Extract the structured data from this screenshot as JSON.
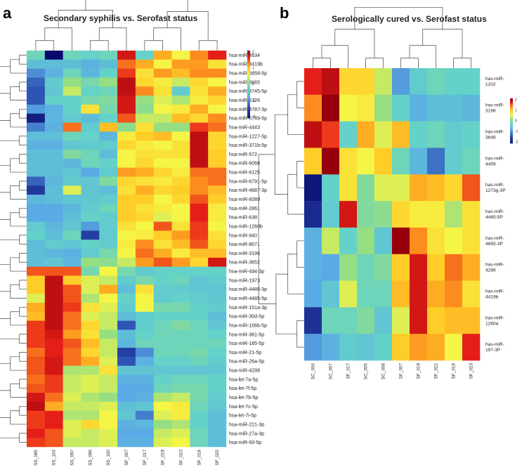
{
  "chart_data": [
    {
      "type": "heatmap",
      "panel": "a",
      "title": "Secondary syphilis vs. Serofast status",
      "columns": [
        "SS_085",
        "SS_103",
        "SS_097",
        "SS_096",
        "SS_100",
        "SF_007",
        "SF_017",
        "SF_019",
        "SF_023",
        "SF_018",
        "SF_022"
      ],
      "rows": [
        "hsa-miR-4634",
        "hsa-miR-4419b",
        "hsa-miR-6858-5p",
        "hsa-miR-3665",
        "hsa-miR-4745-5p",
        "hsa-miR-6126",
        "hsa-miR-4787-3p",
        "hsa-miR-6789-5p",
        "hsa-miR-4443",
        "hsa-miR-1227-5p",
        "hsa-miR-371b-5p",
        "hsa-miR-572",
        "hsa-miR-6068",
        "hsa-miR-6125",
        "hsa-miR-6791-5p",
        "hsa-miR-4687-3p",
        "hsa-miR-6089",
        "hsa-miR-2861",
        "hsa-miR-638",
        "hsa-miR-1260b",
        "hsa-miR-940",
        "hsa-miR-8071",
        "hsa-miR-3195",
        "hsa-miR-3652",
        "hsa-miR-494-3p",
        "hsa-miR-1973",
        "hsa-miR-4485-3p",
        "hsa-miR-4485-5p",
        "hsa-miR-151a-3p",
        "hsa-miR-30d-5p",
        "hsa-miR-106b-5p",
        "hsa-miR-361-5p",
        "hsa-miR-185-5p",
        "hsa-miR-21-5p",
        "hsa-miR-26a-5p",
        "hsa-miR-4299",
        "hsa-let-7a-5p",
        "hsa-let-7f-5p",
        "hsa-let-7b-5p",
        "hsa-let-7c-5p",
        "hsa-let-7i-5p",
        "hsa-miR-221-3p",
        "hsa-miR-27a-3p",
        "hsa-miR-93-5p"
      ],
      "values": [
        [
          -0.2,
          -2.8,
          -0.2,
          -0.3,
          -0.2,
          1.9,
          -0.3,
          1.2,
          0.6,
          1.4,
          1.8
        ],
        [
          -0.6,
          -0.6,
          -0.6,
          -0.8,
          -0.6,
          1.5,
          1.2,
          0.6,
          1.3,
          1.3,
          0.8
        ],
        [
          -1.1,
          -0.8,
          -0.2,
          -0.7,
          -0.3,
          1.7,
          0.8,
          1.3,
          1.1,
          1.4,
          1.4
        ],
        [
          -1.4,
          -0.4,
          0.2,
          -0.1,
          0.2,
          2.0,
          0.9,
          0.7,
          0.4,
          0.9,
          0.6
        ],
        [
          -1.5,
          -0.5,
          0.4,
          -0.3,
          -0.2,
          2.0,
          1.4,
          0.8,
          -0.4,
          0.8,
          1.2
        ],
        [
          -1.5,
          -0.3,
          -0.3,
          -0.1,
          0.0,
          1.9,
          0.2,
          0.5,
          0.3,
          0.7,
          0.9
        ],
        [
          -1.0,
          -0.8,
          -0.3,
          0.8,
          -0.1,
          1.9,
          0.1,
          0.6,
          0.7,
          1.2,
          0.6
        ],
        [
          -2.2,
          -0.7,
          -0.4,
          -0.6,
          -0.3,
          1.6,
          0.4,
          0.4,
          1.1,
          0.9,
          1.4
        ],
        [
          -1.2,
          -0.8,
          1.5,
          -0.4,
          1.1,
          0.1,
          0.8,
          0.2,
          0.2,
          1.7,
          1.5
        ],
        [
          -0.6,
          -0.6,
          -0.2,
          -0.3,
          -0.7,
          0.7,
          1.0,
          1.1,
          0.6,
          2.0,
          0.9
        ],
        [
          -0.8,
          -0.8,
          -0.5,
          -0.4,
          -0.4,
          0.9,
          0.7,
          0.6,
          0.8,
          2.0,
          0.9
        ],
        [
          -0.6,
          -0.6,
          0.0,
          -0.2,
          -0.6,
          0.6,
          0.8,
          0.8,
          0.8,
          2.0,
          1.0
        ],
        [
          -0.6,
          -0.6,
          -0.7,
          -0.2,
          -0.3,
          0.6,
          0.9,
          0.6,
          0.6,
          2.0,
          1.0
        ],
        [
          -0.6,
          -0.6,
          -0.5,
          -0.9,
          -0.4,
          1.3,
          1.2,
          0.9,
          0.7,
          1.5,
          1.5
        ],
        [
          -1.4,
          -0.7,
          -0.4,
          -0.5,
          0.0,
          0.9,
          0.8,
          0.7,
          0.9,
          1.4,
          1.5
        ],
        [
          -1.8,
          -0.6,
          0.5,
          -0.5,
          -0.6,
          0.8,
          1.2,
          0.9,
          1.0,
          1.4,
          1.1
        ],
        [
          -0.7,
          -0.6,
          -0.5,
          -0.5,
          -0.4,
          1.0,
          1.0,
          0.6,
          0.9,
          1.6,
          1.0
        ],
        [
          -0.9,
          -0.9,
          -0.7,
          -0.4,
          -0.2,
          1.0,
          0.8,
          0.7,
          0.6,
          1.8,
          0.7
        ],
        [
          -0.9,
          -0.9,
          -0.6,
          -0.3,
          -0.4,
          1.0,
          0.9,
          0.5,
          0.6,
          1.8,
          0.7
        ],
        [
          -0.4,
          -0.7,
          -0.5,
          -1.0,
          -0.4,
          0.8,
          0.6,
          1.6,
          0.8,
          1.7,
          0.6
        ],
        [
          -0.3,
          -0.6,
          -0.2,
          -1.7,
          -0.4,
          0.6,
          0.7,
          1.0,
          1.3,
          1.7,
          0.8
        ],
        [
          -0.6,
          -0.4,
          -0.5,
          -0.3,
          -0.4,
          0.7,
          1.4,
          0.8,
          1.1,
          1.6,
          0.9
        ],
        [
          -0.6,
          -0.7,
          -0.8,
          -0.4,
          -0.1,
          0.6,
          1.5,
          1.2,
          0.7,
          1.1,
          1.1
        ],
        [
          -0.6,
          -0.5,
          -0.7,
          0.2,
          0.1,
          0.4,
          1.3,
          1.6,
          1.3,
          0.9,
          1.9
        ],
        [
          1.6,
          1.6,
          1.6,
          -0.1,
          0.6,
          -0.1,
          -0.4,
          -0.3,
          -0.3,
          -0.3,
          -0.3
        ],
        [
          1.0,
          2.0,
          1.0,
          0.5,
          0.4,
          -0.4,
          -0.1,
          -0.3,
          -0.2,
          -0.5,
          -0.4
        ],
        [
          1.0,
          2.0,
          1.6,
          0.5,
          1.2,
          -0.6,
          0.8,
          -0.4,
          -0.4,
          -0.5,
          -0.5
        ],
        [
          0.5,
          2.0,
          1.6,
          0.3,
          0.6,
          -0.3,
          0.6,
          -0.4,
          -0.3,
          -0.4,
          -0.5
        ],
        [
          1.2,
          2.0,
          1.7,
          0.8,
          0.5,
          -0.4,
          0.6,
          -0.1,
          -0.1,
          -0.3,
          -0.4
        ],
        [
          1.1,
          2.0,
          1.5,
          0.5,
          0.4,
          -0.6,
          -0.4,
          -0.3,
          -0.3,
          -0.3,
          -0.6
        ],
        [
          1.7,
          2.0,
          1.5,
          0.9,
          0.4,
          -1.5,
          -0.4,
          -0.2,
          0.0,
          -0.2,
          -0.5
        ],
        [
          1.7,
          1.9,
          1.3,
          0.8,
          0.2,
          -0.6,
          -0.3,
          -0.2,
          -0.2,
          -0.2,
          -0.3
        ],
        [
          1.7,
          1.8,
          1.6,
          1.1,
          0.4,
          -0.7,
          -0.2,
          -0.2,
          -0.2,
          -0.2,
          -0.2
        ],
        [
          1.5,
          1.8,
          1.5,
          0.9,
          0.4,
          -1.7,
          -1.1,
          -0.2,
          -0.2,
          -0.1,
          -0.3
        ],
        [
          1.6,
          1.9,
          1.5,
          1.2,
          0.5,
          -1.5,
          -0.8,
          -0.3,
          -0.3,
          -0.2,
          -0.4
        ],
        [
          1.6,
          1.9,
          0.3,
          0.3,
          0.8,
          -0.5,
          -0.5,
          -0.5,
          -0.5,
          -0.5,
          -0.5
        ],
        [
          1.5,
          1.7,
          0.4,
          0.5,
          0.4,
          -0.8,
          -0.8,
          -0.3,
          -0.2,
          -0.2,
          -0.3
        ],
        [
          1.6,
          1.7,
          0.4,
          0.5,
          0.4,
          -0.9,
          -0.9,
          -0.2,
          -0.1,
          -0.1,
          -0.3
        ],
        [
          1.9,
          1.5,
          0.5,
          0.3,
          0.2,
          -0.9,
          -0.8,
          0.3,
          0.4,
          -0.1,
          -0.4
        ],
        [
          2.0,
          1.2,
          0.4,
          0.4,
          0.5,
          -0.6,
          -0.5,
          0.6,
          0.7,
          -0.2,
          -0.5
        ],
        [
          1.7,
          1.8,
          0.3,
          0.3,
          0.6,
          -0.5,
          -1.2,
          0.5,
          0.7,
          -0.3,
          -0.6
        ],
        [
          1.7,
          1.8,
          0.5,
          0.9,
          0.6,
          -0.8,
          -0.7,
          0.2,
          0.3,
          -0.3,
          -0.6
        ],
        [
          1.8,
          1.6,
          0.5,
          0.4,
          0.5,
          -0.9,
          -0.9,
          0.4,
          0.5,
          -0.2,
          -0.6
        ],
        [
          1.7,
          1.6,
          0.4,
          0.4,
          0.5,
          -0.8,
          -0.8,
          0.5,
          0.6,
          -0.2,
          -0.6
        ]
      ],
      "scale_ticks": [
        "2",
        "1",
        "0",
        "-1",
        "-2"
      ],
      "range": [
        -2.8,
        2.0
      ]
    },
    {
      "type": "heatmap",
      "panel": "b",
      "title": "Serologically cured vs. Serofast status",
      "columns": [
        "SC_006",
        "SC_007",
        "SF_017",
        "SC_005",
        "SC_008",
        "SF_007",
        "SF_019",
        "SF_022",
        "SF_018",
        "SF_023"
      ],
      "rows": [
        "has-miR-1202",
        "has-miR-3198",
        "has-miR-3648",
        "has-miR-4459",
        "has-miR-1273g-3P",
        "has-miR-4485-5P",
        "has-miR-4655-3P",
        "has-miR-4286",
        "has-miR-4419b",
        "has-miR-1260a",
        "has-miR-197-3P"
      ],
      "values": [
        [
          1.8,
          2.0,
          0.9,
          0.9,
          0.4,
          -1.0,
          -0.4,
          -0.2,
          -0.3,
          -0.3
        ],
        [
          1.4,
          2.2,
          0.6,
          0.7,
          0.2,
          -0.3,
          -0.8,
          -0.6,
          -0.6,
          -0.7
        ],
        [
          2.0,
          1.7,
          -0.3,
          1.2,
          0.5,
          1.1,
          -0.3,
          -0.2,
          -0.4,
          -0.3
        ],
        [
          1.0,
          2.2,
          0.8,
          0.6,
          1.0,
          -0.2,
          -0.7,
          -1.3,
          -0.4,
          -0.2
        ],
        [
          -2.3,
          -0.3,
          0.8,
          0.0,
          0.5,
          0.5,
          1.2,
          1.1,
          0.9,
          1.6
        ],
        [
          -2.0,
          -0.4,
          1.9,
          0.0,
          0.1,
          0.9,
          0.7,
          0.7,
          0.3,
          0.8
        ],
        [
          -0.8,
          0.4,
          -0.3,
          0.2,
          -0.5,
          2.2,
          1.4,
          0.8,
          0.6,
          0.8
        ],
        [
          -0.8,
          -0.9,
          0.2,
          -0.2,
          0.0,
          1.0,
          1.9,
          1.0,
          1.5,
          1.2
        ],
        [
          -0.9,
          -0.5,
          0.5,
          -0.2,
          -0.2,
          1.1,
          1.9,
          1.2,
          1.4,
          0.8
        ],
        [
          -1.9,
          -0.2,
          -0.2,
          0.0,
          -0.5,
          0.5,
          1.9,
          1.0,
          1.1,
          1.1
        ],
        [
          -1.0,
          -0.8,
          -0.4,
          -0.5,
          -0.3,
          1.0,
          1.3,
          1.2,
          0.6,
          1.8
        ]
      ],
      "scale_ticks": [
        "2",
        "1",
        "0",
        "-1",
        "-2"
      ],
      "range": [
        -2.3,
        2.2
      ]
    }
  ]
}
